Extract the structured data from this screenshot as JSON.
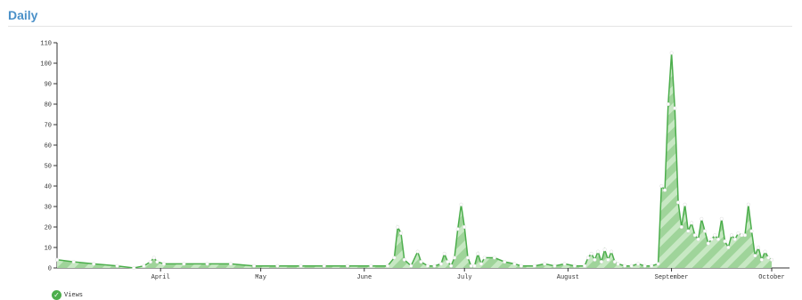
{
  "header": {
    "title": "Daily"
  },
  "chart_data": {
    "type": "area",
    "title": "",
    "xlabel": "",
    "ylabel": "",
    "ylim": [
      0,
      110
    ],
    "yticks": [
      0,
      10,
      20,
      30,
      40,
      50,
      60,
      70,
      80,
      90,
      100,
      110
    ],
    "grid": false,
    "legend_placement": "bottom-left",
    "month_labels": [
      "April",
      "May",
      "June",
      "July",
      "August",
      "September",
      "October"
    ],
    "month_ticks": [
      "2013-04-01",
      "2013-05-01",
      "2013-06-01",
      "2013-07-01",
      "2013-08-01",
      "2013-09-01",
      "2013-10-01"
    ],
    "series": [
      {
        "name": "Views",
        "color": "#4cae4c",
        "points": [
          [
            "2013-03-01",
            4
          ],
          [
            "2013-03-06",
            3
          ],
          [
            "2013-03-12",
            2
          ],
          [
            "2013-03-19",
            1
          ],
          [
            "2013-03-24",
            0
          ],
          [
            "2013-03-27",
            1
          ],
          [
            "2013-03-29",
            3
          ],
          [
            "2013-03-30",
            5
          ],
          [
            "2013-03-31",
            3
          ],
          [
            "2013-04-02",
            2
          ],
          [
            "2013-04-08",
            2
          ],
          [
            "2013-04-15",
            2
          ],
          [
            "2013-04-22",
            2
          ],
          [
            "2013-04-29",
            1
          ],
          [
            "2013-05-06",
            1
          ],
          [
            "2013-05-13",
            1
          ],
          [
            "2013-05-20",
            1
          ],
          [
            "2013-05-27",
            1
          ],
          [
            "2013-06-03",
            1
          ],
          [
            "2013-06-08",
            1
          ],
          [
            "2013-06-10",
            5
          ],
          [
            "2013-06-11",
            20
          ],
          [
            "2013-06-12",
            17
          ],
          [
            "2013-06-13",
            4
          ],
          [
            "2013-06-15",
            1
          ],
          [
            "2013-06-17",
            8
          ],
          [
            "2013-06-18",
            3
          ],
          [
            "2013-06-20",
            1
          ],
          [
            "2013-06-22",
            1
          ],
          [
            "2013-06-24",
            2
          ],
          [
            "2013-06-25",
            7
          ],
          [
            "2013-06-26",
            3
          ],
          [
            "2013-06-27",
            1
          ],
          [
            "2013-06-28",
            5
          ],
          [
            "2013-06-29",
            19
          ],
          [
            "2013-06-30",
            31
          ],
          [
            "2013-07-01",
            20
          ],
          [
            "2013-07-02",
            5
          ],
          [
            "2013-07-03",
            1
          ],
          [
            "2013-07-04",
            1
          ],
          [
            "2013-07-05",
            7
          ],
          [
            "2013-07-06",
            2
          ],
          [
            "2013-07-07",
            5
          ],
          [
            "2013-07-10",
            5
          ],
          [
            "2013-07-13",
            3
          ],
          [
            "2013-07-16",
            2
          ],
          [
            "2013-07-18",
            1
          ],
          [
            "2013-07-22",
            1
          ],
          [
            "2013-07-25",
            2
          ],
          [
            "2013-07-28",
            1
          ],
          [
            "2013-07-31",
            2
          ],
          [
            "2013-08-03",
            1
          ],
          [
            "2013-08-06",
            1
          ],
          [
            "2013-08-07",
            5
          ],
          [
            "2013-08-08",
            7
          ],
          [
            "2013-08-09",
            4
          ],
          [
            "2013-08-10",
            8
          ],
          [
            "2013-08-11",
            3
          ],
          [
            "2013-08-12",
            9
          ],
          [
            "2013-08-13",
            4
          ],
          [
            "2013-08-14",
            8
          ],
          [
            "2013-08-15",
            3
          ],
          [
            "2013-08-16",
            2
          ],
          [
            "2013-08-18",
            1
          ],
          [
            "2013-08-20",
            1
          ],
          [
            "2013-08-22",
            2
          ],
          [
            "2013-08-24",
            1
          ],
          [
            "2013-08-26",
            1
          ],
          [
            "2013-08-28",
            2
          ],
          [
            "2013-08-29",
            40
          ],
          [
            "2013-08-30",
            38
          ],
          [
            "2013-08-31",
            80
          ],
          [
            "2013-09-01",
            105
          ],
          [
            "2013-09-02",
            78
          ],
          [
            "2013-09-03",
            32
          ],
          [
            "2013-09-04",
            20
          ],
          [
            "2013-09-05",
            31
          ],
          [
            "2013-09-06",
            18
          ],
          [
            "2013-09-07",
            22
          ],
          [
            "2013-09-08",
            16
          ],
          [
            "2013-09-09",
            14
          ],
          [
            "2013-09-10",
            24
          ],
          [
            "2013-09-11",
            18
          ],
          [
            "2013-09-12",
            12
          ],
          [
            "2013-09-13",
            14
          ],
          [
            "2013-09-14",
            16
          ],
          [
            "2013-09-15",
            14
          ],
          [
            "2013-09-16",
            24
          ],
          [
            "2013-09-17",
            13
          ],
          [
            "2013-09-18",
            10
          ],
          [
            "2013-09-19",
            16
          ],
          [
            "2013-09-20",
            14
          ],
          [
            "2013-09-21",
            17
          ],
          [
            "2013-09-22",
            16
          ],
          [
            "2013-09-23",
            16
          ],
          [
            "2013-09-24",
            31
          ],
          [
            "2013-09-25",
            18
          ],
          [
            "2013-09-26",
            6
          ],
          [
            "2013-09-27",
            10
          ],
          [
            "2013-09-28",
            4
          ],
          [
            "2013-09-29",
            8
          ],
          [
            "2013-09-30",
            5
          ],
          [
            "2013-10-01",
            4
          ]
        ]
      }
    ]
  }
}
